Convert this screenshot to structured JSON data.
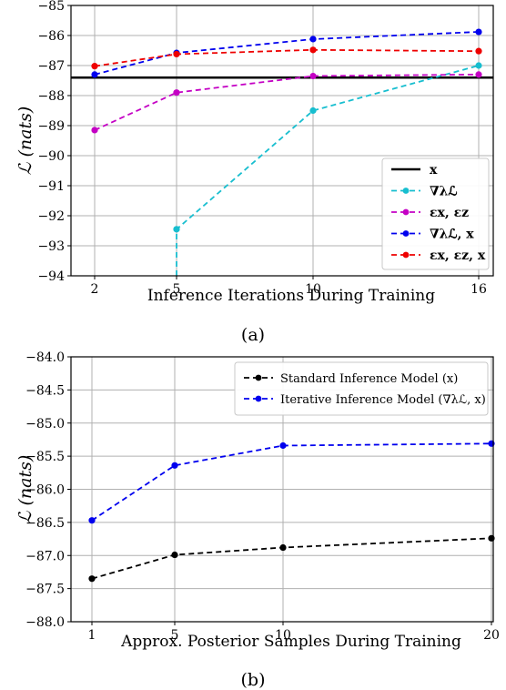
{
  "chart_data": [
    {
      "type": "line",
      "caption": "(a)",
      "xlabel": "Inference Iterations During Training",
      "ylabel": "ℒ (nats)",
      "x_ticks": [
        2,
        5,
        10,
        16
      ],
      "ylim": [
        -94,
        -85
      ],
      "y_ticks": [
        -85,
        -86,
        -87,
        -88,
        -89,
        -90,
        -91,
        -92,
        -93,
        -94
      ],
      "grid": true,
      "legend_position": "lower-right",
      "baseline": {
        "name": "x",
        "value": -87.4,
        "color": "#000000"
      },
      "series": [
        {
          "name": "∇λℒ",
          "color": "#17becf",
          "x": [
            5,
            5,
            10,
            16
          ],
          "y": [
            -94,
            -92.45,
            -88.5,
            -87.0
          ]
        },
        {
          "name": "εx, εz",
          "color": "#c400c4",
          "x": [
            2,
            5,
            10,
            16
          ],
          "y": [
            -89.15,
            -87.9,
            -87.35,
            -87.3
          ]
        },
        {
          "name": "∇λℒ, x",
          "color": "#0000ee",
          "x": [
            2,
            5,
            10,
            16
          ],
          "y": [
            -87.3,
            -86.58,
            -86.12,
            -85.88
          ]
        },
        {
          "name": "εx, εz, x",
          "color": "#ee0000",
          "x": [
            2,
            5,
            10,
            16
          ],
          "y": [
            -87.02,
            -86.62,
            -86.48,
            -86.52
          ]
        }
      ]
    },
    {
      "type": "line",
      "caption": "(b)",
      "xlabel": "Approx. Posterior Samples During Training",
      "ylabel": "ℒ (nats)",
      "x_ticks": [
        1,
        5,
        10,
        20
      ],
      "ylim": [
        -88.0,
        -84.0
      ],
      "y_ticks": [
        -84.0,
        -84.5,
        -85.0,
        -85.5,
        -86.0,
        -86.5,
        -87.0,
        -87.5,
        -88.0
      ],
      "grid": true,
      "legend_position": "top-right",
      "series": [
        {
          "name": "Standard Inference Model (x)",
          "color": "#000000",
          "x": [
            1,
            5,
            10,
            20
          ],
          "y": [
            -87.35,
            -86.99,
            -86.88,
            -86.74
          ]
        },
        {
          "name": "Iterative Inference Model (∇λℒ, x)",
          "color": "#0000ee",
          "x": [
            1,
            5,
            10,
            20
          ],
          "y": [
            -86.47,
            -85.64,
            -85.34,
            -85.31
          ]
        }
      ]
    }
  ]
}
